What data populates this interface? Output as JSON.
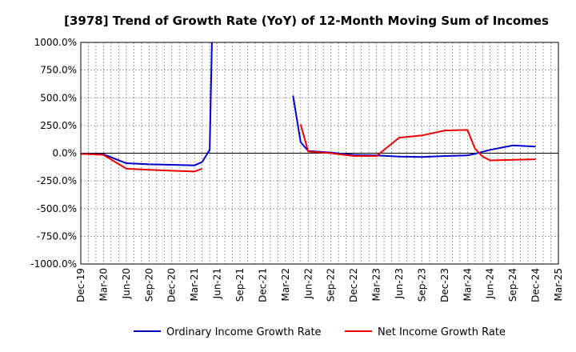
{
  "chart_data": {
    "type": "line",
    "title": "[3978]  Trend of Growth Rate (YoY) of 12-Month Moving Sum of Incomes",
    "xlabel": "",
    "ylabel": "",
    "ylim": [
      -1000,
      1000
    ],
    "y_ticks": [
      "1000.0%",
      "750.0%",
      "500.0%",
      "250.0%",
      "0.0%",
      "-250.0%",
      "-500.0%",
      "-750.0%",
      "-1000.0%"
    ],
    "y_tick_values": [
      1000,
      750,
      500,
      250,
      0,
      -250,
      -500,
      -750,
      -1000
    ],
    "x_ticks": [
      "Dec-19",
      "Mar-20",
      "Jun-20",
      "Sep-20",
      "Dec-20",
      "Mar-21",
      "Jun-21",
      "Sep-21",
      "Dec-21",
      "Mar-22",
      "Jun-22",
      "Sep-22",
      "Dec-22",
      "Mar-23",
      "Jun-23",
      "Sep-23",
      "Dec-23",
      "Mar-24",
      "Jun-24",
      "Sep-24",
      "Dec-24",
      "Mar-25"
    ],
    "x_range_months": [
      0,
      63
    ],
    "grid": true,
    "legend_position": "bottom",
    "series": [
      {
        "name": "Ordinary Income Growth Rate",
        "color": "#0000cc",
        "segments": [
          [
            [
              0,
              -5
            ],
            [
              3,
              -10
            ],
            [
              6,
              -90
            ],
            [
              9,
              -100
            ],
            [
              12,
              -105
            ],
            [
              15,
              -110
            ],
            [
              16,
              -80
            ],
            [
              17,
              30
            ],
            [
              17.3,
              1000
            ]
          ],
          [
            [
              28,
              520
            ],
            [
              29,
              100
            ],
            [
              30,
              20
            ],
            [
              33,
              5
            ],
            [
              36,
              -15
            ],
            [
              39,
              -20
            ],
            [
              42,
              -30
            ],
            [
              45,
              -35
            ],
            [
              48,
              -25
            ],
            [
              51,
              -20
            ],
            [
              52,
              -5
            ],
            [
              54,
              30
            ],
            [
              57,
              70
            ],
            [
              60,
              60
            ]
          ]
        ]
      },
      {
        "name": "Net Income Growth Rate",
        "color": "#ee0000",
        "segments": [
          [
            [
              0,
              -5
            ],
            [
              3,
              -15
            ],
            [
              6,
              -140
            ],
            [
              9,
              -150
            ],
            [
              12,
              -158
            ],
            [
              15,
              -165
            ],
            [
              16,
              -140
            ]
          ],
          [
            [
              29,
              260
            ],
            [
              30,
              15
            ],
            [
              33,
              0
            ],
            [
              36,
              -25
            ],
            [
              39,
              -25
            ],
            [
              42,
              140
            ],
            [
              45,
              160
            ],
            [
              48,
              205
            ],
            [
              51,
              210
            ],
            [
              52,
              40
            ],
            [
              53,
              -30
            ],
            [
              54,
              -65
            ],
            [
              57,
              -60
            ],
            [
              60,
              -55
            ]
          ]
        ]
      }
    ]
  }
}
